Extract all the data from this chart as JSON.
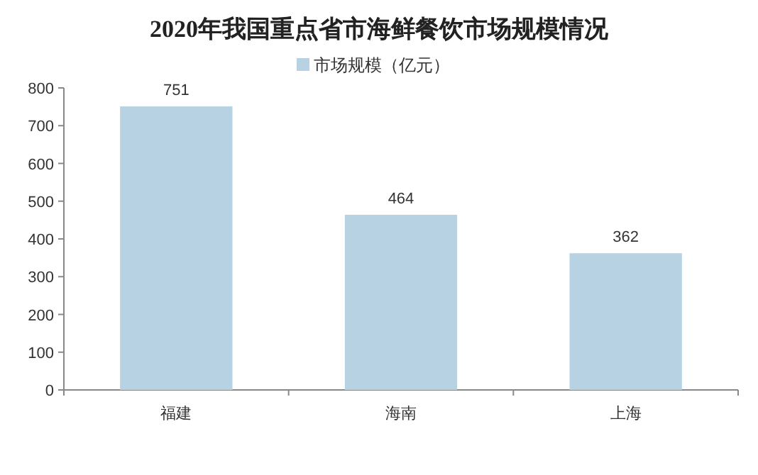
{
  "chart_data": {
    "type": "bar",
    "title": "2020年我国重点省市海鲜餐饮市场规模情况",
    "categories": [
      "福建",
      "海南",
      "上海"
    ],
    "series": [
      {
        "name": "市场规模（亿元）",
        "color": "#b7d2e3",
        "values": [
          751,
          464,
          362
        ]
      }
    ],
    "ylim": [
      0,
      800
    ],
    "yticks": [
      0,
      100,
      200,
      300,
      400,
      500,
      600,
      700,
      800
    ],
    "data_labels": true,
    "legend": "top",
    "grid": false
  }
}
